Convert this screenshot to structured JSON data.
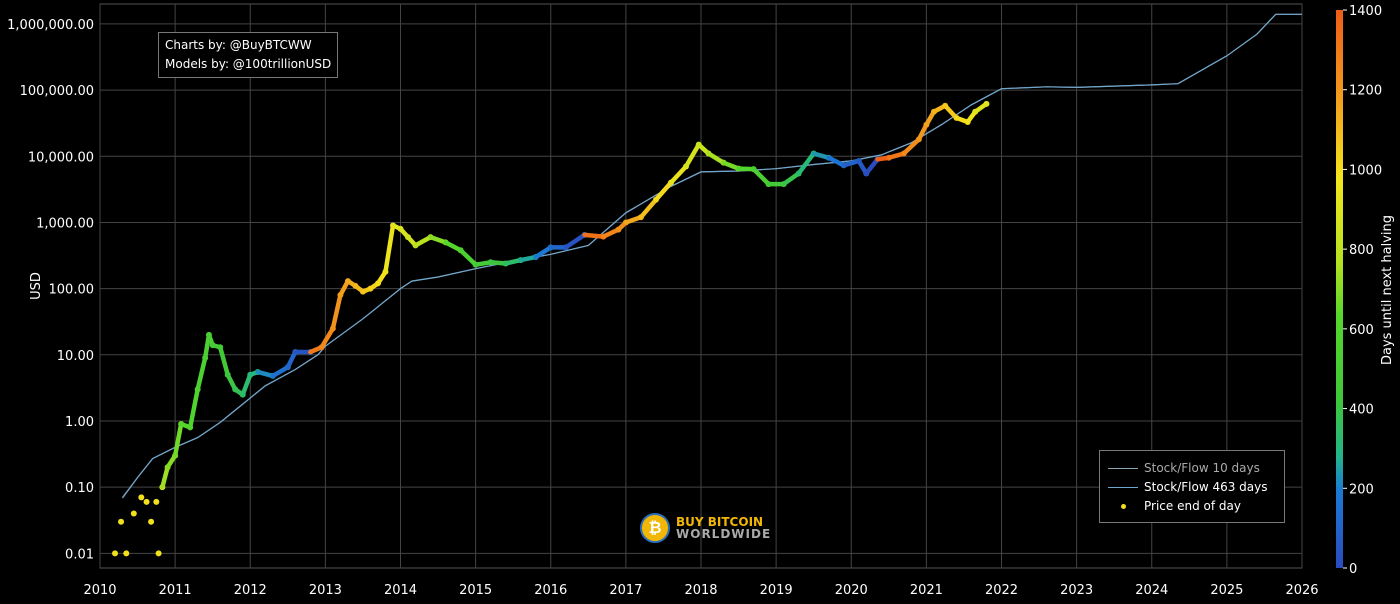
{
  "chart_data": {
    "type": "scatter",
    "ylabel": "USD",
    "y_scale": "log",
    "ylim": [
      0.006,
      2000000
    ],
    "xlim": [
      2010,
      2026
    ],
    "y_ticks": [
      0.01,
      0.1,
      1,
      10,
      100,
      1000,
      10000,
      100000,
      1000000
    ],
    "y_tick_labels": [
      "0.01",
      "0.10",
      "1.00",
      "10.00",
      "100.00",
      "1,000.00",
      "10,000.00",
      "100,000.00",
      "1,000,000.00"
    ],
    "x_ticks": [
      2010,
      2011,
      2012,
      2013,
      2014,
      2015,
      2016,
      2017,
      2018,
      2019,
      2020,
      2021,
      2022,
      2023,
      2024,
      2025,
      2026
    ],
    "x_tick_labels": [
      "2010",
      "2011",
      "2012",
      "2013",
      "2014",
      "2015",
      "2016",
      "2017",
      "2018",
      "2019",
      "2020",
      "2021",
      "2022",
      "2023",
      "2024",
      "2025",
      "2026"
    ],
    "grid": true,
    "colorbar": {
      "label": "Days until next halving",
      "range": [
        0,
        1400
      ],
      "ticks": [
        0,
        200,
        400,
        600,
        800,
        1000,
        1200,
        1400
      ],
      "colors": [
        "#1f4fc2",
        "#1a8fd0",
        "#3fc73a",
        "#b7e21f",
        "#f4e51b",
        "#f29a1c",
        "#ef5d16"
      ]
    },
    "series": [
      {
        "name": "Stock/Flow 10 days",
        "color": "#8aa6b5",
        "points": [
          [
            2010.3,
            0.07
          ],
          [
            2010.5,
            0.14
          ],
          [
            2010.7,
            0.27
          ],
          [
            2011.0,
            0.4
          ],
          [
            2011.3,
            0.56
          ],
          [
            2011.6,
            0.95
          ],
          [
            2011.9,
            1.8
          ],
          [
            2012.2,
            3.4
          ],
          [
            2012.6,
            6.0
          ],
          [
            2012.9,
            10.0
          ],
          [
            2013.0,
            13.5
          ],
          [
            2013.5,
            35
          ],
          [
            2014.0,
            100
          ],
          [
            2014.15,
            130
          ],
          [
            2014.5,
            150
          ],
          [
            2015.0,
            200
          ],
          [
            2015.5,
            260
          ],
          [
            2016.0,
            330
          ],
          [
            2016.5,
            450
          ],
          [
            2017.0,
            1400
          ],
          [
            2017.6,
            3500
          ],
          [
            2018.0,
            5800
          ],
          [
            2018.5,
            6000
          ],
          [
            2019.0,
            6500
          ],
          [
            2019.5,
            7500
          ],
          [
            2020.0,
            8500
          ],
          [
            2020.4,
            10500
          ],
          [
            2020.8,
            16000
          ],
          [
            2021.2,
            30000
          ],
          [
            2021.6,
            60000
          ],
          [
            2022.0,
            105000
          ],
          [
            2022.6,
            112000
          ],
          [
            2023.0,
            110000
          ],
          [
            2023.5,
            115000
          ],
          [
            2024.0,
            120000
          ],
          [
            2024.35,
            125000
          ],
          [
            2025.0,
            330000
          ],
          [
            2025.4,
            700000
          ],
          [
            2025.65,
            1400000
          ],
          [
            2026.0,
            1400000
          ]
        ]
      },
      {
        "name": "Stock/Flow 463 days",
        "color": "#6fa6cf",
        "points": [
          [
            2010.3,
            0.068
          ],
          [
            2010.5,
            0.14
          ],
          [
            2010.7,
            0.27
          ],
          [
            2011.0,
            0.4
          ],
          [
            2011.3,
            0.56
          ],
          [
            2011.6,
            0.95
          ],
          [
            2011.9,
            1.8
          ],
          [
            2012.2,
            3.4
          ],
          [
            2012.6,
            6.0
          ],
          [
            2012.9,
            10.0
          ],
          [
            2013.0,
            13.5
          ],
          [
            2013.5,
            35
          ],
          [
            2014.0,
            100
          ],
          [
            2014.15,
            130
          ],
          [
            2014.5,
            150
          ],
          [
            2015.0,
            200
          ],
          [
            2015.5,
            260
          ],
          [
            2016.0,
            330
          ],
          [
            2016.5,
            450
          ],
          [
            2017.0,
            1400
          ],
          [
            2017.6,
            3500
          ],
          [
            2018.0,
            5800
          ],
          [
            2018.5,
            6000
          ],
          [
            2019.0,
            6500
          ],
          [
            2019.5,
            7500
          ],
          [
            2020.0,
            8500
          ],
          [
            2020.4,
            10500
          ],
          [
            2020.8,
            16000
          ],
          [
            2021.2,
            30000
          ],
          [
            2021.6,
            60000
          ],
          [
            2022.0,
            105000
          ],
          [
            2022.6,
            112000
          ],
          [
            2023.0,
            110000
          ],
          [
            2023.5,
            115000
          ],
          [
            2024.0,
            120000
          ],
          [
            2024.35,
            125000
          ],
          [
            2025.0,
            330000
          ],
          [
            2025.4,
            700000
          ],
          [
            2025.65,
            1400000
          ],
          [
            2026.0,
            1400000
          ]
        ]
      },
      {
        "name": "Price end of day",
        "color": "#f2e01c",
        "points": [
          [
            2010.2,
            0.01
          ],
          [
            2010.28,
            0.03
          ],
          [
            2010.35,
            0.01
          ],
          [
            2010.45,
            0.04
          ],
          [
            2010.55,
            0.07
          ],
          [
            2010.62,
            0.06
          ],
          [
            2010.68,
            0.03
          ],
          [
            2010.75,
            0.06
          ],
          [
            2010.78,
            0.01
          ],
          [
            2010.83,
            0.1
          ],
          [
            2010.9,
            0.2
          ],
          [
            2011.0,
            0.3
          ],
          [
            2011.08,
            0.9
          ],
          [
            2011.2,
            0.8
          ],
          [
            2011.3,
            3
          ],
          [
            2011.4,
            9
          ],
          [
            2011.45,
            20
          ],
          [
            2011.5,
            14
          ],
          [
            2011.6,
            13
          ],
          [
            2011.7,
            5
          ],
          [
            2011.8,
            3
          ],
          [
            2011.9,
            2.5
          ],
          [
            2012.0,
            5
          ],
          [
            2012.1,
            5.5
          ],
          [
            2012.3,
            4.8
          ],
          [
            2012.5,
            6.5
          ],
          [
            2012.6,
            11
          ],
          [
            2012.8,
            11
          ],
          [
            2012.95,
            13
          ],
          [
            2013.1,
            25
          ],
          [
            2013.2,
            80
          ],
          [
            2013.3,
            130
          ],
          [
            2013.4,
            110
          ],
          [
            2013.5,
            90
          ],
          [
            2013.6,
            100
          ],
          [
            2013.7,
            120
          ],
          [
            2013.8,
            180
          ],
          [
            2013.9,
            900
          ],
          [
            2014.0,
            800
          ],
          [
            2014.1,
            600
          ],
          [
            2014.2,
            450
          ],
          [
            2014.4,
            600
          ],
          [
            2014.6,
            500
          ],
          [
            2014.8,
            380
          ],
          [
            2015.0,
            230
          ],
          [
            2015.2,
            250
          ],
          [
            2015.4,
            240
          ],
          [
            2015.6,
            270
          ],
          [
            2015.8,
            300
          ],
          [
            2016.0,
            420
          ],
          [
            2016.2,
            420
          ],
          [
            2016.45,
            650
          ],
          [
            2016.7,
            610
          ],
          [
            2016.9,
            780
          ],
          [
            2017.0,
            1000
          ],
          [
            2017.2,
            1200
          ],
          [
            2017.4,
            2200
          ],
          [
            2017.6,
            4000
          ],
          [
            2017.8,
            7000
          ],
          [
            2017.97,
            15000
          ],
          [
            2018.1,
            11000
          ],
          [
            2018.3,
            8000
          ],
          [
            2018.5,
            6500
          ],
          [
            2018.7,
            6400
          ],
          [
            2018.9,
            3800
          ],
          [
            2019.1,
            3800
          ],
          [
            2019.3,
            5500
          ],
          [
            2019.5,
            11000
          ],
          [
            2019.7,
            9500
          ],
          [
            2019.9,
            7300
          ],
          [
            2020.1,
            8500
          ],
          [
            2020.2,
            5500
          ],
          [
            2020.35,
            9000
          ],
          [
            2020.5,
            9500
          ],
          [
            2020.7,
            11000
          ],
          [
            2020.9,
            18000
          ],
          [
            2021.0,
            30000
          ],
          [
            2021.1,
            47000
          ],
          [
            2021.25,
            58000
          ],
          [
            2021.4,
            38000
          ],
          [
            2021.55,
            33000
          ],
          [
            2021.65,
            47000
          ],
          [
            2021.8,
            62000
          ]
        ]
      }
    ]
  },
  "credits": {
    "line1": "Charts by: @BuyBTCWW",
    "line2": "Models by: @100trillionUSD"
  },
  "logo": {
    "line1": "BUY BITCOIN",
    "line2": "WORLDWIDE"
  }
}
